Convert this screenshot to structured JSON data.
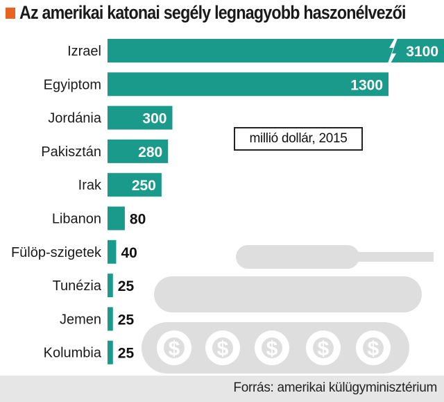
{
  "title": "Az amerikai katonai segély legnagyobb haszonélvezői",
  "unit_note": "millió dollár, 2015",
  "source": "Forrás: amerikai külügyminisztérium",
  "colors": {
    "bar": "#1a9a8a",
    "accent_square": "#e8641e",
    "tank": "#dedede",
    "footer_bg": "#e6e6e6",
    "inside_label": "#ffffff",
    "outside_label": "#111111"
  },
  "decoration": {
    "icon": "tank-icon",
    "wheel_symbol": "$"
  },
  "chart_data": {
    "type": "bar",
    "orientation": "horizontal",
    "title": "Az amerikai katonai segély legnagyobb haszonélvezői",
    "categories": [
      "Izrael",
      "Egyiptom",
      "Jordánia",
      "Pakisztán",
      "Irak",
      "Libanon",
      "Fülöp-szigetek",
      "Tunézia",
      "Jemen",
      "Kolumbia"
    ],
    "values": [
      3100,
      1300,
      300,
      280,
      250,
      80,
      40,
      25,
      25,
      25
    ],
    "value_labels": [
      "3100",
      "1300",
      "300",
      "280",
      "250",
      "80",
      "40",
      "25",
      "25",
      "25"
    ],
    "unit": "millió dollár, 2015",
    "axis_break": {
      "category": "Izrael",
      "symbol": "//"
    },
    "grid": false,
    "legend": "none"
  }
}
